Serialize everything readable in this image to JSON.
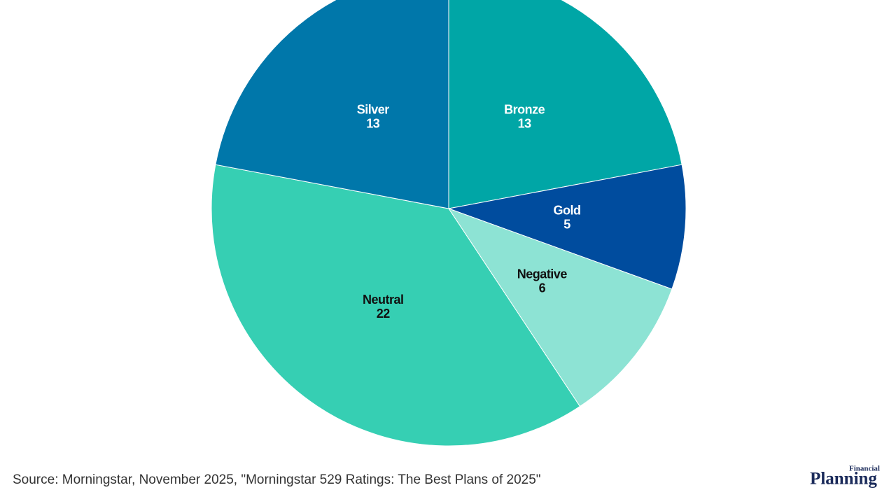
{
  "chart_data": {
    "type": "pie",
    "categories": [
      "Bronze",
      "Gold",
      "Negative",
      "Neutral",
      "Silver"
    ],
    "values": [
      13,
      5,
      6,
      22,
      13
    ],
    "colors": [
      "#00a6a6",
      "#004c9e",
      "#8de3d4",
      "#36cfb3",
      "#0077aa"
    ],
    "source": "Source: Morningstar, November 2025, \"Morningstar 529 Ratings: The Best Plans of 2025\""
  },
  "logo": {
    "top": "Financial",
    "main": "Planning"
  }
}
